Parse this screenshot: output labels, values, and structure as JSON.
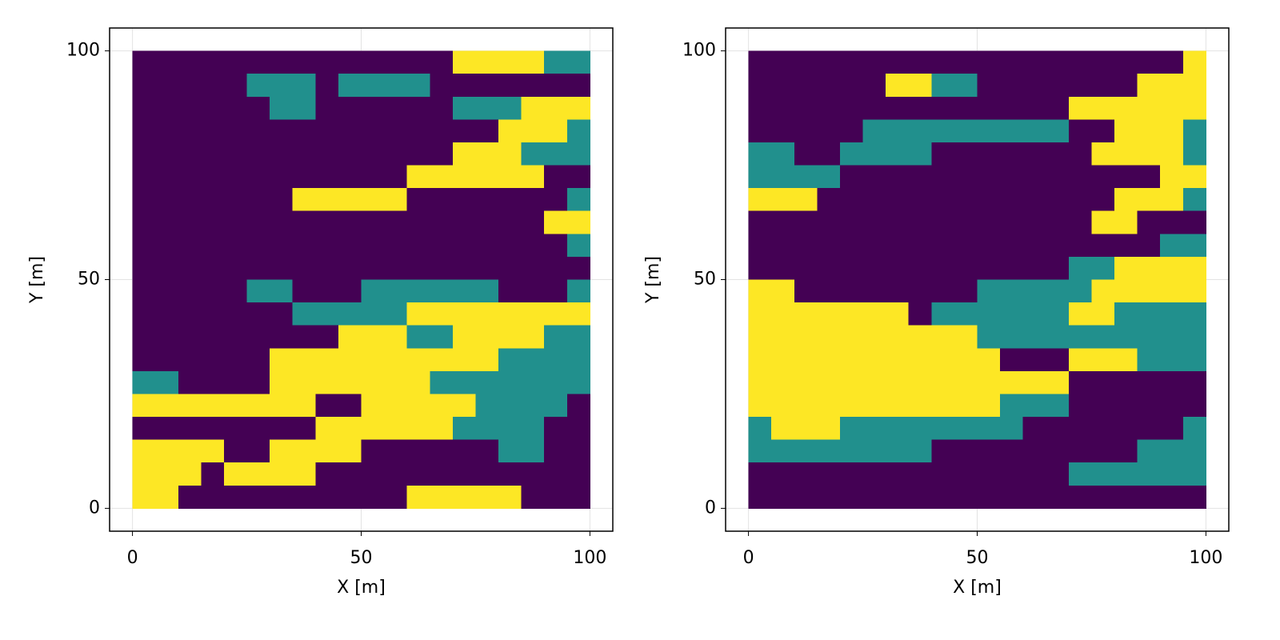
{
  "chart_data": [
    {
      "type": "heatmap",
      "xlabel": "X [m]",
      "ylabel": "Y [m]",
      "xlim": [
        -5,
        105
      ],
      "ylim": [
        -5,
        105
      ],
      "xticks": [
        0,
        50,
        100
      ],
      "yticks": [
        0,
        50,
        100
      ],
      "grid": true,
      "colors": [
        "#440154",
        "#21908d",
        "#fde725"
      ],
      "x": [
        2.5,
        7.5,
        12.5,
        17.5,
        22.5,
        27.5,
        32.5,
        37.5,
        42.5,
        47.5,
        52.5,
        57.5,
        62.5,
        67.5,
        72.5,
        77.5,
        82.5,
        87.5,
        92.5,
        97.5
      ],
      "y": [
        97.5,
        92.5,
        87.5,
        82.5,
        77.5,
        72.5,
        67.5,
        62.5,
        57.5,
        52.5,
        47.5,
        42.5,
        37.5,
        32.5,
        27.5,
        22.5,
        17.5,
        12.5,
        7.5,
        2.5
      ],
      "z": [
        [
          0,
          0,
          0,
          0,
          0,
          0,
          0,
          0,
          0,
          0,
          0,
          0,
          0,
          0,
          2,
          2,
          2,
          2,
          1,
          1
        ],
        [
          0,
          0,
          0,
          0,
          0,
          1,
          1,
          1,
          0,
          1,
          1,
          1,
          1,
          0,
          0,
          0,
          0,
          0,
          0,
          0
        ],
        [
          0,
          0,
          0,
          0,
          0,
          0,
          1,
          1,
          0,
          0,
          0,
          0,
          0,
          0,
          1,
          1,
          1,
          2,
          2,
          2
        ],
        [
          0,
          0,
          0,
          0,
          0,
          0,
          0,
          0,
          0,
          0,
          0,
          0,
          0,
          0,
          0,
          0,
          2,
          2,
          2,
          1
        ],
        [
          0,
          0,
          0,
          0,
          0,
          0,
          0,
          0,
          0,
          0,
          0,
          0,
          0,
          0,
          2,
          2,
          2,
          1,
          1,
          1
        ],
        [
          0,
          0,
          0,
          0,
          0,
          0,
          0,
          0,
          0,
          0,
          0,
          0,
          2,
          2,
          2,
          2,
          2,
          2,
          0,
          0
        ],
        [
          0,
          0,
          0,
          0,
          0,
          0,
          0,
          2,
          2,
          2,
          2,
          2,
          0,
          0,
          0,
          0,
          0,
          0,
          0,
          1
        ],
        [
          0,
          0,
          0,
          0,
          0,
          0,
          0,
          0,
          0,
          0,
          0,
          0,
          0,
          0,
          0,
          0,
          0,
          0,
          2,
          2
        ],
        [
          0,
          0,
          0,
          0,
          0,
          0,
          0,
          0,
          0,
          0,
          0,
          0,
          0,
          0,
          0,
          0,
          0,
          0,
          0,
          1
        ],
        [
          0,
          0,
          0,
          0,
          0,
          0,
          0,
          0,
          0,
          0,
          0,
          0,
          0,
          0,
          0,
          0,
          0,
          0,
          0,
          0
        ],
        [
          0,
          0,
          0,
          0,
          0,
          1,
          1,
          0,
          0,
          0,
          1,
          1,
          1,
          1,
          1,
          1,
          0,
          0,
          0,
          1
        ],
        [
          0,
          0,
          0,
          0,
          0,
          0,
          0,
          1,
          1,
          1,
          1,
          1,
          2,
          2,
          2,
          2,
          2,
          2,
          2,
          2
        ],
        [
          0,
          0,
          0,
          0,
          0,
          0,
          0,
          0,
          0,
          2,
          2,
          2,
          1,
          1,
          2,
          2,
          2,
          2,
          1,
          1
        ],
        [
          0,
          0,
          0,
          0,
          0,
          0,
          2,
          2,
          2,
          2,
          2,
          2,
          2,
          2,
          2,
          2,
          1,
          1,
          1,
          1
        ],
        [
          1,
          1,
          0,
          0,
          0,
          0,
          2,
          2,
          2,
          2,
          2,
          2,
          2,
          1,
          1,
          1,
          1,
          1,
          1,
          1
        ],
        [
          2,
          2,
          2,
          2,
          2,
          2,
          2,
          2,
          0,
          0,
          2,
          2,
          2,
          2,
          2,
          1,
          1,
          1,
          1,
          0
        ],
        [
          0,
          0,
          0,
          0,
          0,
          0,
          0,
          0,
          2,
          2,
          2,
          2,
          2,
          2,
          1,
          1,
          1,
          1,
          0,
          0
        ],
        [
          2,
          2,
          2,
          2,
          0,
          0,
          2,
          2,
          2,
          2,
          0,
          0,
          0,
          0,
          0,
          0,
          1,
          1,
          0,
          0
        ],
        [
          2,
          2,
          2,
          0,
          2,
          2,
          2,
          2,
          0,
          0,
          0,
          0,
          0,
          0,
          0,
          0,
          0,
          0,
          0,
          0
        ],
        [
          2,
          2,
          0,
          0,
          0,
          0,
          0,
          0,
          0,
          0,
          0,
          0,
          2,
          2,
          2,
          2,
          2,
          0,
          0,
          0
        ]
      ]
    },
    {
      "type": "heatmap",
      "xlabel": "X [m]",
      "ylabel": "Y [m]",
      "xlim": [
        -5,
        105
      ],
      "ylim": [
        -5,
        105
      ],
      "xticks": [
        0,
        50,
        100
      ],
      "yticks": [
        0,
        50,
        100
      ],
      "grid": true,
      "colors": [
        "#440154",
        "#21908d",
        "#fde725"
      ],
      "x": [
        2.5,
        7.5,
        12.5,
        17.5,
        22.5,
        27.5,
        32.5,
        37.5,
        42.5,
        47.5,
        52.5,
        57.5,
        62.5,
        67.5,
        72.5,
        77.5,
        82.5,
        87.5,
        92.5,
        97.5
      ],
      "y": [
        97.5,
        92.5,
        87.5,
        82.5,
        77.5,
        72.5,
        67.5,
        62.5,
        57.5,
        52.5,
        47.5,
        42.5,
        37.5,
        32.5,
        27.5,
        22.5,
        17.5,
        12.5,
        7.5,
        2.5
      ],
      "z": [
        [
          0,
          0,
          0,
          0,
          0,
          0,
          0,
          0,
          0,
          0,
          0,
          0,
          0,
          0,
          0,
          0,
          0,
          0,
          0,
          2
        ],
        [
          0,
          0,
          0,
          0,
          0,
          0,
          2,
          2,
          1,
          1,
          0,
          0,
          0,
          0,
          0,
          0,
          0,
          2,
          2,
          2
        ],
        [
          0,
          0,
          0,
          0,
          0,
          0,
          0,
          0,
          0,
          0,
          0,
          0,
          0,
          0,
          2,
          2,
          2,
          2,
          2,
          2
        ],
        [
          0,
          0,
          0,
          0,
          0,
          1,
          1,
          1,
          1,
          1,
          1,
          1,
          1,
          1,
          0,
          0,
          2,
          2,
          2,
          1
        ],
        [
          1,
          1,
          0,
          0,
          1,
          1,
          1,
          1,
          0,
          0,
          0,
          0,
          0,
          0,
          0,
          2,
          2,
          2,
          2,
          1
        ],
        [
          1,
          1,
          1,
          1,
          0,
          0,
          0,
          0,
          0,
          0,
          0,
          0,
          0,
          0,
          0,
          0,
          0,
          0,
          2,
          2
        ],
        [
          2,
          2,
          2,
          0,
          0,
          0,
          0,
          0,
          0,
          0,
          0,
          0,
          0,
          0,
          0,
          0,
          2,
          2,
          2,
          1
        ],
        [
          0,
          0,
          0,
          0,
          0,
          0,
          0,
          0,
          0,
          0,
          0,
          0,
          0,
          0,
          0,
          2,
          2,
          0,
          0,
          0
        ],
        [
          0,
          0,
          0,
          0,
          0,
          0,
          0,
          0,
          0,
          0,
          0,
          0,
          0,
          0,
          0,
          0,
          0,
          0,
          1,
          1
        ],
        [
          0,
          0,
          0,
          0,
          0,
          0,
          0,
          0,
          0,
          0,
          0,
          0,
          0,
          0,
          1,
          1,
          2,
          2,
          2,
          2
        ],
        [
          2,
          2,
          0,
          0,
          0,
          0,
          0,
          0,
          0,
          0,
          1,
          1,
          1,
          1,
          1,
          2,
          2,
          2,
          2,
          2
        ],
        [
          2,
          2,
          2,
          2,
          2,
          2,
          2,
          0,
          1,
          1,
          1,
          1,
          1,
          1,
          2,
          2,
          1,
          1,
          1,
          1
        ],
        [
          2,
          2,
          2,
          2,
          2,
          2,
          2,
          2,
          2,
          2,
          1,
          1,
          1,
          1,
          1,
          1,
          1,
          1,
          1,
          1
        ],
        [
          2,
          2,
          2,
          2,
          2,
          2,
          2,
          2,
          2,
          2,
          2,
          0,
          0,
          0,
          2,
          2,
          2,
          1,
          1,
          1
        ],
        [
          2,
          2,
          2,
          2,
          2,
          2,
          2,
          2,
          2,
          2,
          2,
          2,
          2,
          2,
          0,
          0,
          0,
          0,
          0,
          0
        ],
        [
          2,
          2,
          2,
          2,
          2,
          2,
          2,
          2,
          2,
          2,
          2,
          1,
          1,
          1,
          0,
          0,
          0,
          0,
          0,
          0
        ],
        [
          1,
          2,
          2,
          2,
          1,
          1,
          1,
          1,
          1,
          1,
          1,
          1,
          0,
          0,
          0,
          0,
          0,
          0,
          0,
          1
        ],
        [
          1,
          1,
          1,
          1,
          1,
          1,
          1,
          1,
          0,
          0,
          0,
          0,
          0,
          0,
          0,
          0,
          0,
          1,
          1,
          1
        ],
        [
          0,
          0,
          0,
          0,
          0,
          0,
          0,
          0,
          0,
          0,
          0,
          0,
          0,
          0,
          1,
          1,
          1,
          1,
          1,
          1
        ],
        [
          0,
          0,
          0,
          0,
          0,
          0,
          0,
          0,
          0,
          0,
          0,
          0,
          0,
          0,
          0,
          0,
          0,
          0,
          0,
          0
        ]
      ]
    }
  ]
}
